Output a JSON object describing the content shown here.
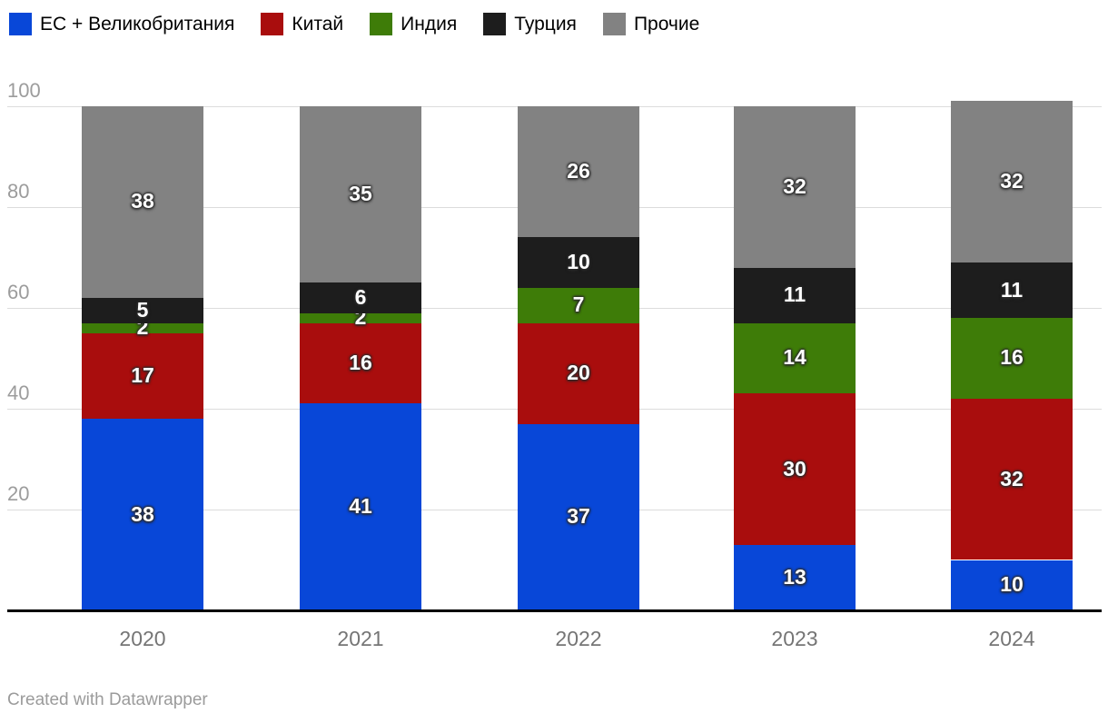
{
  "chart_data": {
    "type": "bar",
    "stacked": true,
    "title": "",
    "xlabel": "",
    "ylabel": "",
    "categories": [
      "2020",
      "2021",
      "2022",
      "2023",
      "2024"
    ],
    "series": [
      {
        "name": "ЕС + Великобритания",
        "color": "#0847d8",
        "values": [
          38,
          41,
          37,
          13,
          10
        ]
      },
      {
        "name": "Китай",
        "color": "#a90d0d",
        "values": [
          17,
          16,
          20,
          30,
          32
        ]
      },
      {
        "name": "Индия",
        "color": "#3e7c08",
        "values": [
          2,
          2,
          7,
          14,
          16
        ]
      },
      {
        "name": "Турция",
        "color": "#1d1d1d",
        "values": [
          5,
          6,
          10,
          11,
          11
        ]
      },
      {
        "name": "Прочие",
        "color": "#828282",
        "values": [
          38,
          35,
          26,
          32,
          32
        ]
      }
    ],
    "ylim": [
      0,
      100
    ],
    "yticks": [
      20,
      40,
      60,
      80,
      100
    ],
    "grid": true,
    "legend_position": "top",
    "value_labels": "inside-white"
  },
  "footer": {
    "credit": "Created with Datawrapper"
  }
}
